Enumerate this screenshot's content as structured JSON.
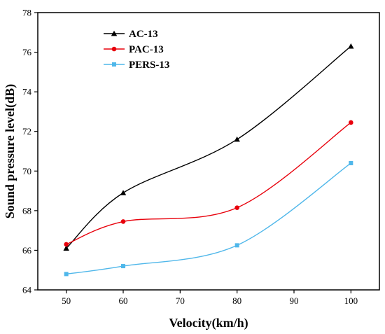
{
  "chart_data": {
    "type": "line",
    "title": "",
    "xlabel": "Velocity(km/h)",
    "ylabel": "Sound pressure level(dB)",
    "xlim": [
      45,
      105
    ],
    "ylim": [
      64,
      78
    ],
    "xticks": [
      50,
      60,
      70,
      80,
      90,
      100
    ],
    "yticks": [
      64,
      66,
      68,
      70,
      72,
      74,
      76,
      78
    ],
    "x": [
      50,
      60,
      80,
      100
    ],
    "grid": false,
    "legend_position": "top-left",
    "series": [
      {
        "name": "AC-13",
        "color": "#000000",
        "marker": "triangle",
        "values": [
          66.1,
          68.9,
          71.6,
          76.3
        ]
      },
      {
        "name": "PAC-13",
        "color": "#e8000b",
        "marker": "circle",
        "values": [
          66.3,
          67.45,
          68.15,
          72.45
        ]
      },
      {
        "name": "PERS-13",
        "color": "#4fb7ea",
        "marker": "square",
        "values": [
          64.8,
          65.2,
          66.25,
          70.4
        ]
      }
    ]
  }
}
